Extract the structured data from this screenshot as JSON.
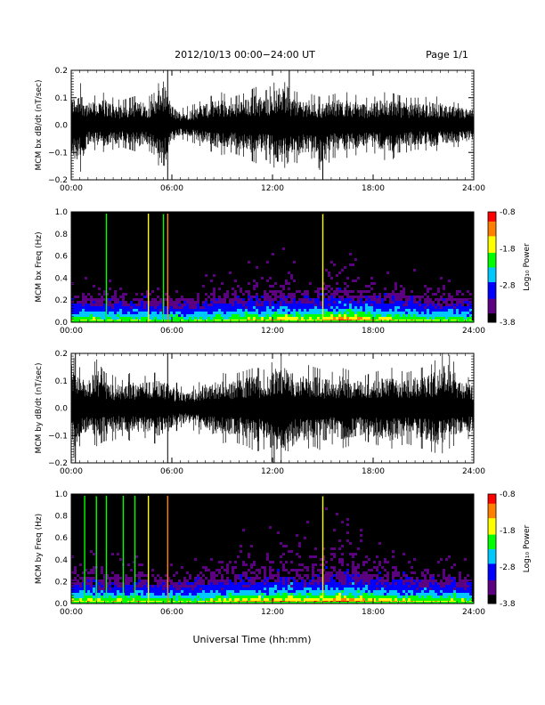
{
  "header": {
    "date_title": "2012/10/13  00:00−24:00 UT",
    "page": "Page 1/1"
  },
  "xlabel": "Universal Time (hh:mm)",
  "time_ticks": [
    "00:00",
    "06:00",
    "12:00",
    "18:00",
    "24:00"
  ],
  "colorbar": {
    "label": "Log₁₀ Power",
    "ticks": [
      "-0.8",
      "-1.8",
      "-2.8",
      "-3.8"
    ],
    "range": [
      -3.8,
      -0.8
    ],
    "colors": [
      "#000000",
      "#5a0080",
      "#0000ff",
      "#00c8ff",
      "#00ff00",
      "#ffff00",
      "#ff8000",
      "#ff0000"
    ]
  },
  "chart_data": [
    {
      "type": "line",
      "ylabel": "MCM bx dB/dt (nT/sec)",
      "xlim": [
        0,
        24
      ],
      "ylim": [
        -0.2,
        0.2
      ],
      "yticks": [
        "0.2",
        "0.1",
        "0.0",
        "−0.1",
        "−0.2"
      ],
      "series": [
        {
          "x": [
            0,
            0.5,
            1,
            1.5,
            2,
            2.5,
            3,
            3.5,
            4,
            4.5,
            5,
            5.5,
            6,
            6.5,
            7,
            7.5,
            8,
            8.5,
            9,
            9.5,
            10,
            10.5,
            11,
            11.5,
            12,
            12.5,
            13,
            13.5,
            14,
            14.5,
            15,
            15.5,
            16,
            16.5,
            17,
            17.5,
            18,
            18.5,
            19,
            19.5,
            20,
            20.5,
            21,
            21.5,
            22,
            22.5,
            23,
            23.5,
            24
          ],
          "upper": [
            0.12,
            0.16,
            0.1,
            0.11,
            0.12,
            0.1,
            0.09,
            0.1,
            0.11,
            0.1,
            0.12,
            0.2,
            0.09,
            0.06,
            0.07,
            0.08,
            0.1,
            0.11,
            0.12,
            0.1,
            0.11,
            0.12,
            0.14,
            0.12,
            0.15,
            0.18,
            0.13,
            0.12,
            0.12,
            0.11,
            0.1,
            0.11,
            0.12,
            0.12,
            0.11,
            0.1,
            0.1,
            0.12,
            0.12,
            0.11,
            0.1,
            0.1,
            0.1,
            0.11,
            0.1,
            0.09,
            0.08,
            0.08,
            0.07
          ],
          "lower": [
            -0.15,
            -0.18,
            -0.1,
            -0.09,
            -0.1,
            -0.09,
            -0.08,
            -0.09,
            -0.1,
            -0.09,
            -0.11,
            -0.2,
            -0.08,
            -0.05,
            -0.06,
            -0.07,
            -0.09,
            -0.1,
            -0.11,
            -0.1,
            -0.11,
            -0.12,
            -0.14,
            -0.12,
            -0.15,
            -0.18,
            -0.13,
            -0.14,
            -0.13,
            -0.12,
            -0.19,
            -0.12,
            -0.12,
            -0.12,
            -0.11,
            -0.1,
            -0.1,
            -0.12,
            -0.14,
            -0.1,
            -0.1,
            -0.09,
            -0.09,
            -0.1,
            -0.09,
            -0.08,
            -0.08,
            -0.08,
            -0.07
          ]
        }
      ],
      "spikes": [
        {
          "x": 5.75,
          "y": 0.2
        },
        {
          "x": 5.75,
          "y": -0.2
        },
        {
          "x": 13.0,
          "y": 0.2
        },
        {
          "x": 15.0,
          "y": -0.2
        }
      ]
    },
    {
      "type": "heatmap",
      "ylabel": "MCM bx Freq (Hz)",
      "xlim": [
        0,
        24
      ],
      "ylim": [
        0,
        1.0
      ],
      "yticks": [
        "1.0",
        "0.8",
        "0.6",
        "0.4",
        "0.2",
        "0.0"
      ],
      "activity": [
        0.35,
        0.4,
        0.45,
        0.4,
        0.35,
        0.4,
        0.35,
        0.4,
        0.4,
        0.35,
        0.3,
        0.3,
        0.35,
        0.3,
        0.3,
        0.35,
        0.4,
        0.45,
        0.4,
        0.45,
        0.5,
        0.55,
        0.5,
        0.55,
        0.6,
        0.65,
        0.6,
        0.55,
        0.55,
        0.6,
        0.7,
        0.75,
        0.8,
        0.75,
        0.7,
        0.65,
        0.6,
        0.55,
        0.55,
        0.5,
        0.5,
        0.45,
        0.4,
        0.4,
        0.4,
        0.45,
        0.4,
        0.35
      ],
      "lines": [
        {
          "x": 2.1,
          "level": 0.55
        },
        {
          "x": 4.6,
          "level": 0.75
        },
        {
          "x": 5.5,
          "level": 0.55
        },
        {
          "x": 5.75,
          "level": 0.9
        },
        {
          "x": 15.0,
          "level": 0.65
        }
      ]
    },
    {
      "type": "line",
      "ylabel": "MCM by dB/dt (nT/sec)",
      "xlim": [
        0,
        24
      ],
      "ylim": [
        -0.2,
        0.2
      ],
      "yticks": [
        "0.2",
        "0.1",
        "0.0",
        "−0.1",
        "−0.2"
      ],
      "series": [
        {
          "x": [
            0,
            0.5,
            1,
            1.5,
            2,
            2.5,
            3,
            3.5,
            4,
            4.5,
            5,
            5.5,
            6,
            6.5,
            7,
            7.5,
            8,
            8.5,
            9,
            9.5,
            10,
            10.5,
            11,
            11.5,
            12,
            12.5,
            13,
            13.5,
            14,
            14.5,
            15,
            15.5,
            16,
            16.5,
            17,
            17.5,
            18,
            18.5,
            19,
            19.5,
            20,
            20.5,
            21,
            21.5,
            22,
            22.5,
            23,
            23.5,
            24
          ],
          "upper": [
            0.2,
            0.15,
            0.12,
            0.18,
            0.13,
            0.12,
            0.1,
            0.13,
            0.11,
            0.12,
            0.13,
            0.12,
            0.11,
            0.08,
            0.07,
            0.09,
            0.11,
            0.12,
            0.13,
            0.12,
            0.13,
            0.14,
            0.15,
            0.14,
            0.17,
            0.2,
            0.18,
            0.15,
            0.16,
            0.15,
            0.14,
            0.13,
            0.15,
            0.14,
            0.13,
            0.12,
            0.13,
            0.14,
            0.15,
            0.14,
            0.13,
            0.14,
            0.15,
            0.16,
            0.2,
            0.2,
            0.15,
            0.12,
            0.1
          ],
          "lower": [
            -0.2,
            -0.14,
            -0.11,
            -0.14,
            -0.12,
            -0.12,
            -0.1,
            -0.12,
            -0.11,
            -0.11,
            -0.13,
            -0.12,
            -0.1,
            -0.07,
            -0.07,
            -0.09,
            -0.11,
            -0.12,
            -0.13,
            -0.12,
            -0.13,
            -0.14,
            -0.16,
            -0.15,
            -0.2,
            -0.2,
            -0.2,
            -0.15,
            -0.15,
            -0.14,
            -0.16,
            -0.13,
            -0.15,
            -0.14,
            -0.13,
            -0.12,
            -0.13,
            -0.14,
            -0.15,
            -0.14,
            -0.13,
            -0.14,
            -0.15,
            -0.16,
            -0.17,
            -0.15,
            -0.13,
            -0.12,
            -0.1
          ]
        }
      ],
      "spikes": [
        {
          "x": 0.25,
          "y": 0.2
        },
        {
          "x": 0.25,
          "y": -0.2
        },
        {
          "x": 5.75,
          "y": 0.2
        },
        {
          "x": 5.75,
          "y": -0.2
        },
        {
          "x": 12.1,
          "y": -0.2
        }
      ]
    },
    {
      "type": "heatmap",
      "ylabel": "MCM by Freq (Hz)",
      "xlim": [
        0,
        24
      ],
      "ylim": [
        0,
        1.0
      ],
      "yticks": [
        "1.0",
        "0.8",
        "0.6",
        "0.4",
        "0.2",
        "0.0"
      ],
      "activity": [
        0.45,
        0.5,
        0.55,
        0.5,
        0.45,
        0.5,
        0.45,
        0.5,
        0.5,
        0.45,
        0.4,
        0.4,
        0.45,
        0.4,
        0.4,
        0.45,
        0.5,
        0.55,
        0.5,
        0.55,
        0.6,
        0.65,
        0.6,
        0.65,
        0.7,
        0.75,
        0.7,
        0.65,
        0.65,
        0.7,
        0.75,
        0.8,
        0.85,
        0.8,
        0.75,
        0.7,
        0.65,
        0.6,
        0.6,
        0.55,
        0.55,
        0.5,
        0.5,
        0.5,
        0.45,
        0.5,
        0.45,
        0.4
      ],
      "lines": [
        {
          "x": 0.8,
          "level": 0.55
        },
        {
          "x": 1.5,
          "level": 0.5
        },
        {
          "x": 2.1,
          "level": 0.55
        },
        {
          "x": 3.1,
          "level": 0.6
        },
        {
          "x": 3.8,
          "level": 0.55
        },
        {
          "x": 4.6,
          "level": 0.75
        },
        {
          "x": 5.75,
          "level": 0.9
        },
        {
          "x": 15.0,
          "level": 0.65
        }
      ]
    }
  ]
}
